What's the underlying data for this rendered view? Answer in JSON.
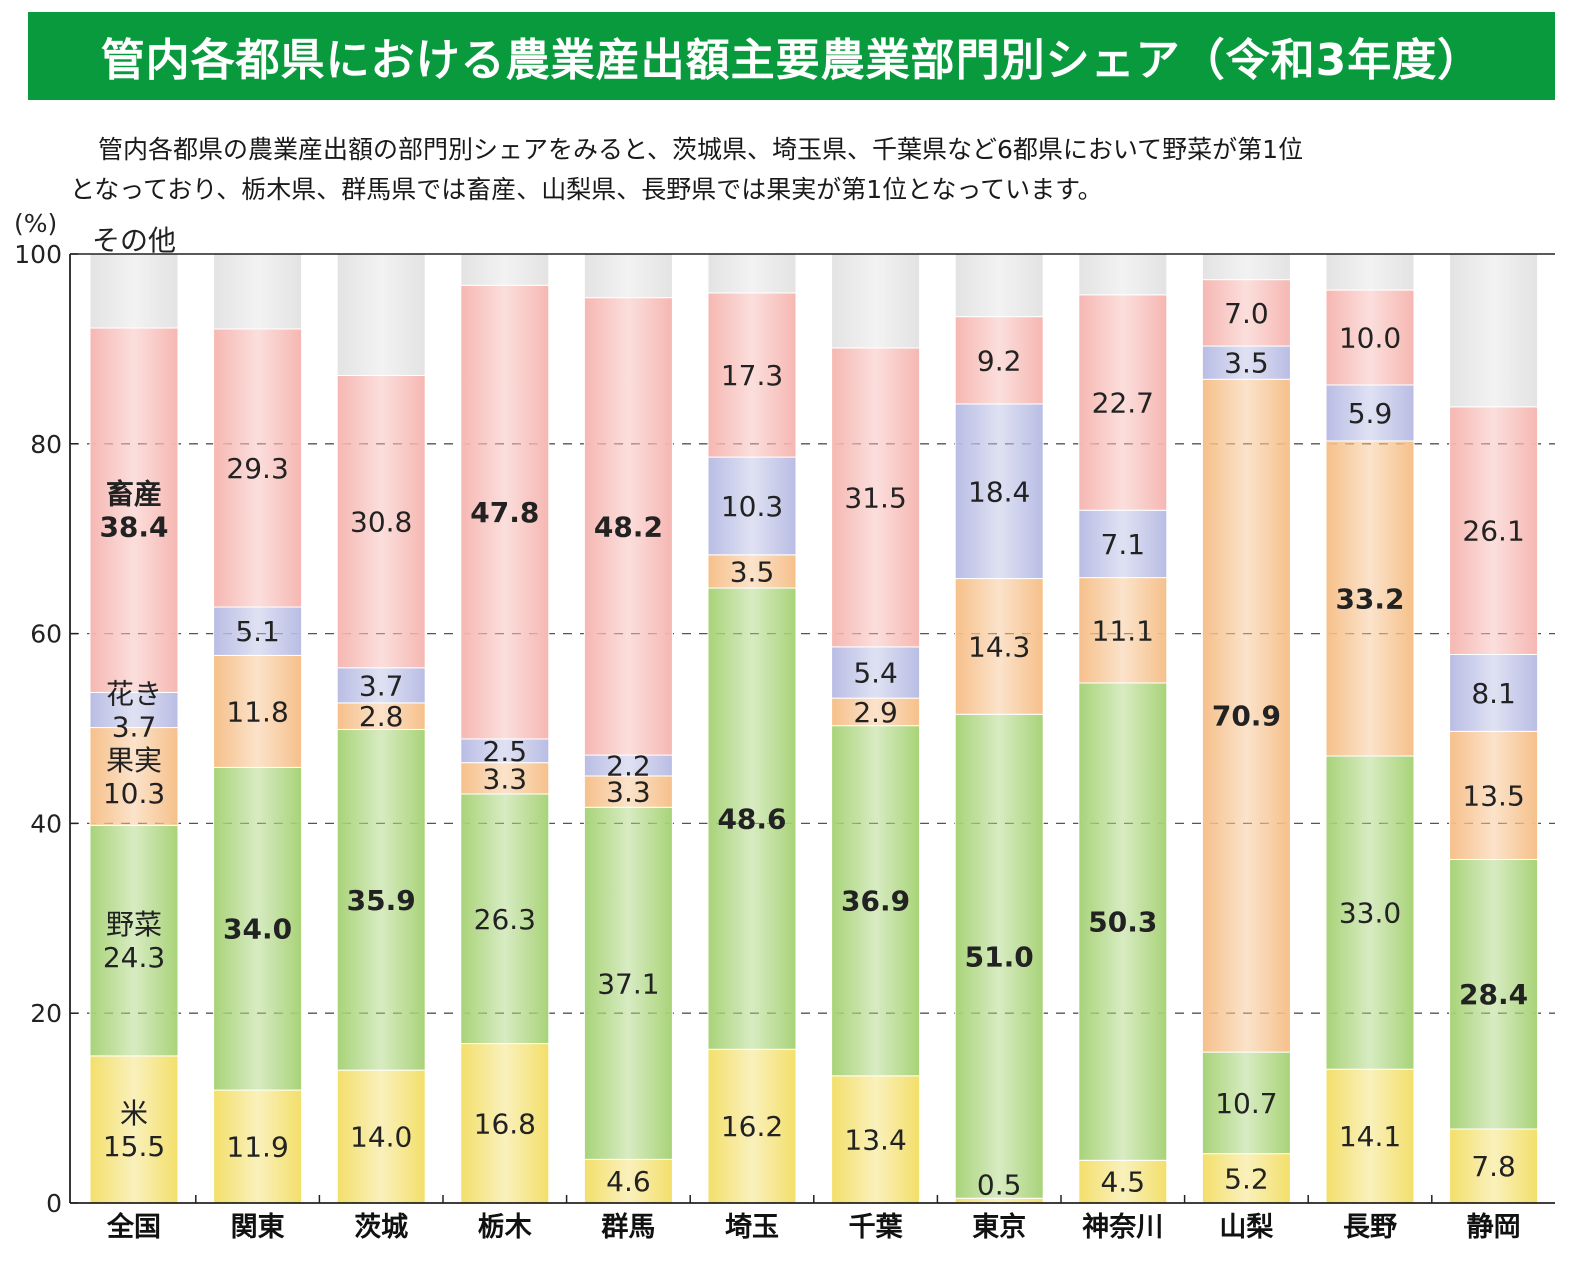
{
  "title": "管内各都県における農業産出額主要農業部門別シェア（令和3年度）",
  "description": [
    "管内各都県の農業産出額の部門別シェアをみると、茨城県、埼玉県、千葉県など6都県において野菜が第1位",
    "となっており、栃木県、群馬県では畜産、山梨県、長野県では果実が第1位となっています。"
  ],
  "colors": {
    "rice": "#f3df6a",
    "vegetables": "#a8d378",
    "fruits": "#f6c08a",
    "flowers": "#b9bde4",
    "livestock": "#f6b7b2",
    "other": "#e3e3e3",
    "title_bg": "#0a9a3e"
  },
  "chart_data": {
    "type": "bar",
    "stacked": true,
    "orientation": "vertical",
    "ylabel": "(%)",
    "ylim": [
      0,
      100
    ],
    "yticks": [
      0,
      20,
      40,
      60,
      80,
      100
    ],
    "grid": "dashed horizontal",
    "categories": [
      "全国",
      "関東",
      "茨城",
      "栃木",
      "群馬",
      "埼玉",
      "千葉",
      "東京",
      "神奈川",
      "山梨",
      "長野",
      "静岡"
    ],
    "series": [
      {
        "name": "米",
        "key": "rice",
        "values": [
          15.5,
          11.9,
          14.0,
          16.8,
          4.6,
          16.2,
          13.4,
          0.5,
          4.5,
          5.2,
          14.1,
          7.8
        ]
      },
      {
        "name": "野菜",
        "key": "vegetables",
        "values": [
          24.3,
          34.0,
          35.9,
          26.3,
          37.1,
          48.6,
          36.9,
          51.0,
          50.3,
          10.7,
          33.0,
          28.4
        ]
      },
      {
        "name": "果実",
        "key": "fruits",
        "values": [
          10.3,
          11.8,
          2.8,
          3.3,
          3.3,
          3.5,
          2.9,
          14.3,
          11.1,
          70.9,
          33.2,
          13.5
        ]
      },
      {
        "name": "花き",
        "key": "flowers",
        "values": [
          3.7,
          5.1,
          3.7,
          2.5,
          2.2,
          10.3,
          5.4,
          18.4,
          7.1,
          3.5,
          5.9,
          8.1
        ]
      },
      {
        "name": "畜産",
        "key": "livestock",
        "values": [
          38.4,
          29.3,
          30.8,
          47.8,
          48.2,
          17.3,
          31.5,
          9.2,
          22.7,
          7.0,
          10.0,
          26.1
        ]
      },
      {
        "name": "その他",
        "key": "other",
        "values": [
          7.8,
          7.9,
          12.8,
          3.3,
          4.6,
          4.1,
          9.9,
          6.6,
          4.3,
          2.7,
          3.8,
          16.1
        ]
      }
    ],
    "labels": [
      [
        "米\n15.5",
        "11.9",
        "14.0",
        "16.8",
        "4.6",
        "16.2",
        "13.4",
        "0.5",
        "4.5",
        "5.2",
        "14.1",
        "7.8"
      ],
      [
        "野菜\n24.3",
        "34.0",
        "35.9",
        "26.3",
        "37.1",
        "48.6",
        "36.9",
        "51.0",
        "50.3",
        "10.7",
        "33.0",
        "28.4"
      ],
      [
        "果実\n10.3",
        "11.8",
        "2.8",
        "3.3",
        "3.3",
        "3.5",
        "2.9",
        "14.3",
        "11.1",
        "70.9",
        "33.2",
        "13.5"
      ],
      [
        "花き\n3.7",
        "5.1",
        "3.7",
        "2.5",
        "2.2",
        "10.3",
        "5.4",
        "18.4",
        "7.1",
        "3.5",
        "5.9",
        "8.1"
      ],
      [
        "畜産\n38.4",
        "29.3",
        "30.8",
        "47.8",
        "48.2",
        "17.3",
        "31.5",
        "9.2",
        "22.7",
        "7.0",
        "10.0",
        "26.1"
      ],
      [
        "その他",
        "",
        "",
        "",
        "",
        "",
        "",
        "",
        "",
        "",
        "",
        ""
      ]
    ],
    "bold_labels": [
      [
        false,
        false,
        false,
        false,
        false,
        false,
        false,
        false,
        false,
        false,
        false,
        false
      ],
      [
        false,
        true,
        true,
        false,
        false,
        true,
        true,
        true,
        true,
        false,
        false,
        true
      ],
      [
        false,
        false,
        false,
        false,
        false,
        false,
        false,
        false,
        false,
        true,
        true,
        false
      ],
      [
        false,
        false,
        false,
        false,
        false,
        false,
        false,
        false,
        false,
        false,
        false,
        false
      ],
      [
        true,
        false,
        false,
        true,
        true,
        false,
        false,
        false,
        false,
        false,
        false,
        false
      ],
      [
        false,
        false,
        false,
        false,
        false,
        false,
        false,
        false,
        false,
        false,
        false,
        false
      ]
    ]
  }
}
